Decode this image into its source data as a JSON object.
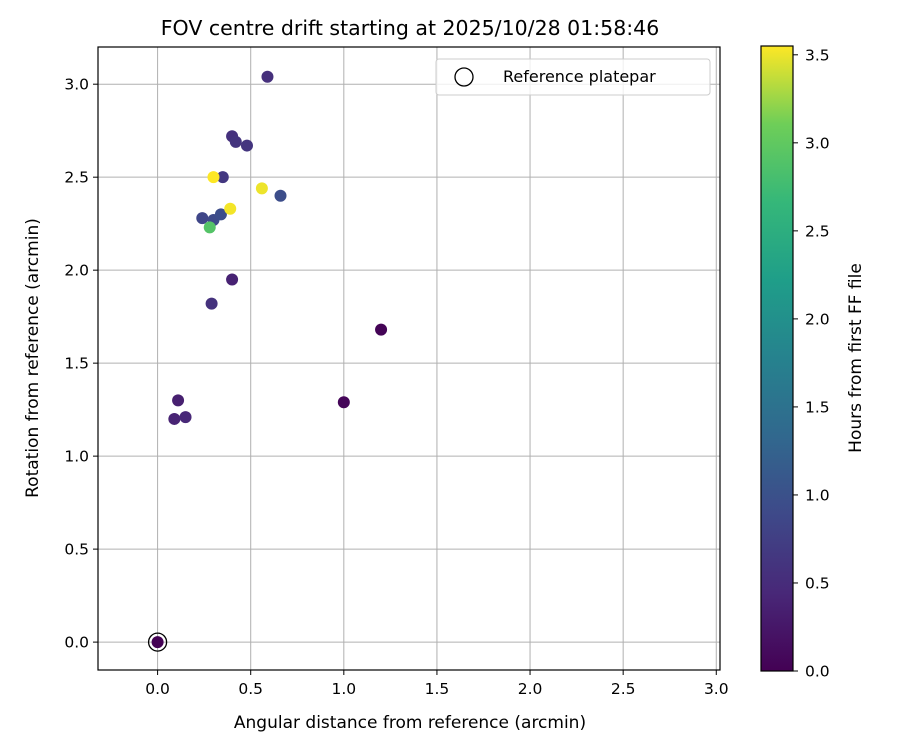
{
  "chart_data": {
    "type": "scatter",
    "title": "FOV centre drift starting at 2025/10/28 01:58:46",
    "xlabel": "Angular distance from reference (arcmin)",
    "ylabel": "Rotation from reference (arcmin)",
    "xlim": [
      -0.32,
      3.02
    ],
    "ylim": [
      -0.15,
      3.2
    ],
    "xticks": [
      0.0,
      0.5,
      1.0,
      1.5,
      2.0,
      2.5,
      3.0
    ],
    "xtick_labels": [
      "0.0",
      "0.5",
      "1.0",
      "1.5",
      "2.0",
      "2.5",
      "3.0"
    ],
    "yticks": [
      0.0,
      0.5,
      1.0,
      1.5,
      2.0,
      2.5,
      3.0
    ],
    "ytick_labels": [
      "0.0",
      "0.5",
      "1.0",
      "1.5",
      "2.0",
      "2.5",
      "3.0"
    ],
    "grid": true,
    "legend": {
      "position": "top-right",
      "entries": [
        "Reference platepar"
      ]
    },
    "reference_point": {
      "x": 0.0,
      "y": 0.0,
      "label": "Reference platepar"
    },
    "colorbar": {
      "label": "Hours from first FF file",
      "colormap": "viridis",
      "range": [
        0.0,
        3.55
      ],
      "ticks": [
        0.0,
        0.5,
        1.0,
        1.5,
        2.0,
        2.5,
        3.0,
        3.5
      ],
      "tick_labels": [
        "0.0",
        "0.5",
        "1.0",
        "1.5",
        "2.0",
        "2.5",
        "3.0",
        "3.5"
      ]
    },
    "points": [
      {
        "x": 0.0,
        "y": 0.0,
        "hours": 0.0
      },
      {
        "x": 1.2,
        "y": 1.68,
        "hours": 0.03
      },
      {
        "x": 1.0,
        "y": 1.29,
        "hours": 0.06
      },
      {
        "x": 0.11,
        "y": 1.3,
        "hours": 0.35
      },
      {
        "x": 0.09,
        "y": 1.2,
        "hours": 0.4
      },
      {
        "x": 0.15,
        "y": 1.21,
        "hours": 0.45
      },
      {
        "x": 0.4,
        "y": 1.95,
        "hours": 0.38
      },
      {
        "x": 0.29,
        "y": 1.82,
        "hours": 0.58
      },
      {
        "x": 0.59,
        "y": 3.04,
        "hours": 0.55
      },
      {
        "x": 0.4,
        "y": 2.72,
        "hours": 0.57
      },
      {
        "x": 0.42,
        "y": 2.69,
        "hours": 0.6
      },
      {
        "x": 0.48,
        "y": 2.67,
        "hours": 0.62
      },
      {
        "x": 0.35,
        "y": 2.5,
        "hours": 0.65
      },
      {
        "x": 0.66,
        "y": 2.4,
        "hours": 0.95
      },
      {
        "x": 0.24,
        "y": 2.28,
        "hours": 0.85
      },
      {
        "x": 0.3,
        "y": 2.27,
        "hours": 0.9
      },
      {
        "x": 0.34,
        "y": 2.3,
        "hours": 0.95
      },
      {
        "x": 0.28,
        "y": 2.23,
        "hours": 2.9
      },
      {
        "x": 0.3,
        "y": 2.5,
        "hours": 3.55
      },
      {
        "x": 0.39,
        "y": 2.33,
        "hours": 3.52
      },
      {
        "x": 0.56,
        "y": 2.44,
        "hours": 3.5
      }
    ]
  }
}
